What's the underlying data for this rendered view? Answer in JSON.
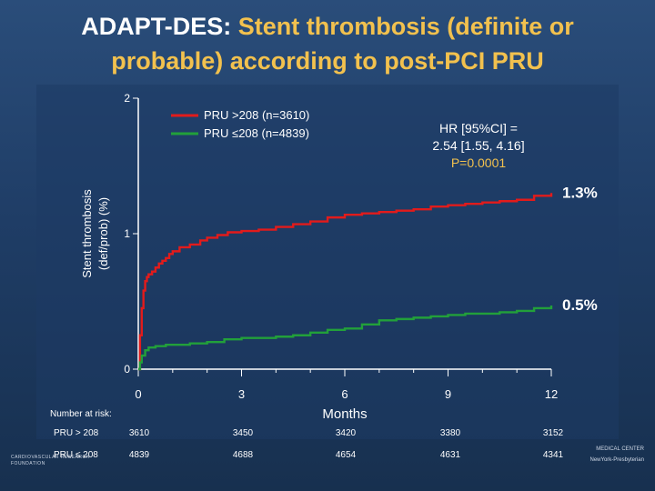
{
  "title": {
    "prefix": "ADAPT-DES: ",
    "highlight": "Stent thrombosis (definite or",
    "line2": "probable) according to post-PCI PRU"
  },
  "chart_data": {
    "type": "line",
    "title": "ADAPT-DES: Stent thrombosis (definite or probable) according to post-PCI PRU",
    "xlabel": "Months",
    "ylabel": "Stent thrombosis (def/prob) (%)",
    "xlim": [
      0,
      12
    ],
    "ylim": [
      0,
      2
    ],
    "x_ticks": [
      "0",
      "3",
      "6",
      "9",
      "12"
    ],
    "y_ticks": [
      "0",
      "1",
      "2"
    ],
    "legend_position": "top-center",
    "series": [
      {
        "name": "PRU >208 (n=3610)",
        "color": "#e21b1b",
        "end_label": "1.3%",
        "x": [
          0,
          0.05,
          0.1,
          0.15,
          0.2,
          0.25,
          0.3,
          0.4,
          0.5,
          0.6,
          0.7,
          0.8,
          0.9,
          1.0,
          1.2,
          1.5,
          1.8,
          2.0,
          2.3,
          2.6,
          3.0,
          3.5,
          4.0,
          4.5,
          5.0,
          5.5,
          6.0,
          6.5,
          7.0,
          7.5,
          8.0,
          8.5,
          9.0,
          9.5,
          10.0,
          10.5,
          11.0,
          11.5,
          12.0
        ],
        "y": [
          0,
          0.25,
          0.45,
          0.58,
          0.65,
          0.68,
          0.7,
          0.72,
          0.75,
          0.78,
          0.8,
          0.82,
          0.85,
          0.87,
          0.9,
          0.92,
          0.95,
          0.97,
          0.99,
          1.01,
          1.02,
          1.03,
          1.05,
          1.07,
          1.09,
          1.12,
          1.14,
          1.15,
          1.16,
          1.17,
          1.18,
          1.2,
          1.21,
          1.22,
          1.23,
          1.24,
          1.25,
          1.28,
          1.3
        ]
      },
      {
        "name": "PRU ≤208 (n=4839)",
        "color": "#22a03a",
        "end_label": "0.5%",
        "x": [
          0,
          0.05,
          0.1,
          0.2,
          0.3,
          0.5,
          0.8,
          1.0,
          1.5,
          2.0,
          2.5,
          3.0,
          3.5,
          4.0,
          4.5,
          5.0,
          5.5,
          6.0,
          6.5,
          7.0,
          7.5,
          8.0,
          8.5,
          9.0,
          9.5,
          10.0,
          10.5,
          11.0,
          11.5,
          12.0
        ],
        "y": [
          0,
          0.05,
          0.1,
          0.14,
          0.16,
          0.17,
          0.18,
          0.18,
          0.19,
          0.2,
          0.22,
          0.23,
          0.23,
          0.24,
          0.25,
          0.27,
          0.29,
          0.3,
          0.33,
          0.36,
          0.37,
          0.38,
          0.39,
          0.4,
          0.41,
          0.41,
          0.42,
          0.43,
          0.45,
          0.47
        ]
      }
    ],
    "annotations": [
      "HR [95%CI] =",
      "2.54 [1.55, 4.16]",
      "P=0.0001"
    ]
  },
  "risk_table": {
    "header": "Number at risk:",
    "rows": [
      {
        "label": "PRU > 208",
        "values": [
          "3610",
          "3450",
          "3420",
          "3380",
          "3152"
        ]
      },
      {
        "label": "PRU ≤ 208",
        "values": [
          "4839",
          "4688",
          "4654",
          "4631",
          "4341"
        ]
      }
    ]
  }
}
